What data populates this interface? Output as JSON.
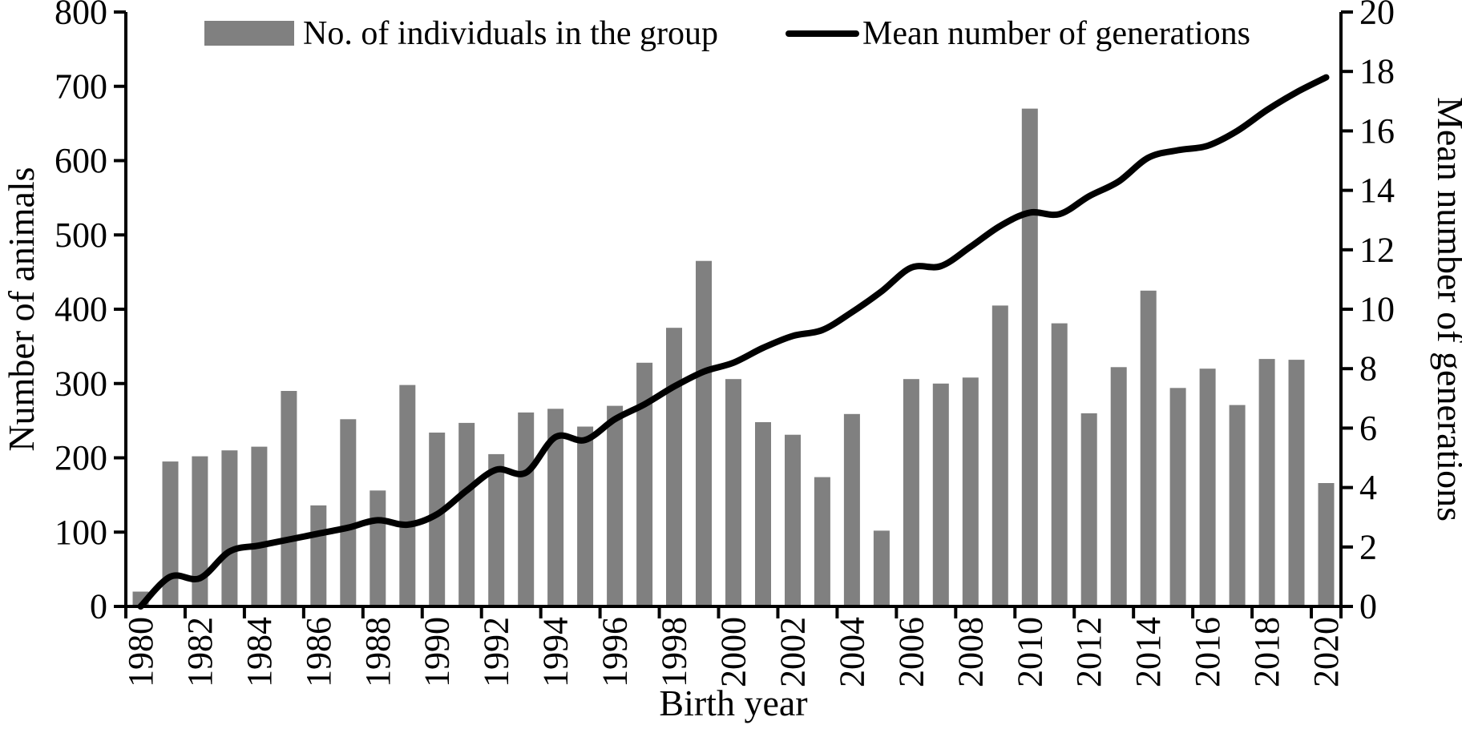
{
  "chart_data": {
    "type": "bar-line-combo",
    "title": "",
    "xlabel": "Birth year",
    "ylabel_left": "Number of animals",
    "ylabel_right": "Mean number of generations",
    "legend_position": "top",
    "grid": false,
    "background": "#ffffff",
    "bar_color": "#808080",
    "line_color": "#000000",
    "axis_color": "#000000",
    "ylim_left": [
      0,
      800
    ],
    "ylim_right": [
      0,
      20
    ],
    "y_left_ticks": [
      "0",
      "100",
      "200",
      "300",
      "400",
      "500",
      "600",
      "700",
      "800"
    ],
    "y_right_ticks": [
      "0",
      "2",
      "4",
      "6",
      "8",
      "10",
      "12",
      "14",
      "16",
      "18",
      "20"
    ],
    "x_tick_labels": [
      "1980",
      "1982",
      "1984",
      "1986",
      "1988",
      "1990",
      "1992",
      "1994",
      "1996",
      "1998",
      "2000",
      "2002",
      "2004",
      "2006",
      "2008",
      "2010",
      "2012",
      "2014",
      "2016",
      "2018",
      "2020"
    ],
    "categories": [
      1980,
      1981,
      1982,
      1983,
      1984,
      1985,
      1986,
      1987,
      1988,
      1989,
      1990,
      1991,
      1992,
      1993,
      1994,
      1995,
      1996,
      1997,
      1998,
      1999,
      2000,
      2001,
      2002,
      2003,
      2004,
      2005,
      2006,
      2007,
      2008,
      2009,
      2010,
      2011,
      2012,
      2013,
      2014,
      2015,
      2016,
      2017,
      2018,
      2019,
      2020
    ],
    "series": [
      {
        "name": "No. of individuals in the group",
        "type": "bar",
        "axis": "left",
        "values": [
          20,
          195,
          202,
          210,
          215,
          290,
          136,
          252,
          156,
          298,
          234,
          247,
          205,
          261,
          266,
          242,
          270,
          328,
          375,
          465,
          306,
          248,
          231,
          174,
          259,
          102,
          306,
          300,
          308,
          405,
          670,
          381,
          260,
          322,
          425,
          294,
          320,
          271,
          333,
          332,
          166
        ]
      },
      {
        "name": "Mean number of generations",
        "type": "line",
        "axis": "right",
        "values": [
          0,
          1.0,
          0.95,
          1.85,
          2.05,
          2.25,
          2.45,
          2.65,
          2.9,
          2.75,
          3.1,
          3.9,
          4.6,
          4.5,
          5.7,
          5.6,
          6.3,
          6.8,
          7.4,
          7.9,
          8.2,
          8.7,
          9.1,
          9.3,
          9.9,
          10.6,
          11.4,
          11.45,
          12.1,
          12.8,
          13.25,
          13.2,
          13.8,
          14.3,
          15.1,
          15.35,
          15.5,
          16.0,
          16.7,
          17.3,
          17.8
        ]
      }
    ]
  }
}
